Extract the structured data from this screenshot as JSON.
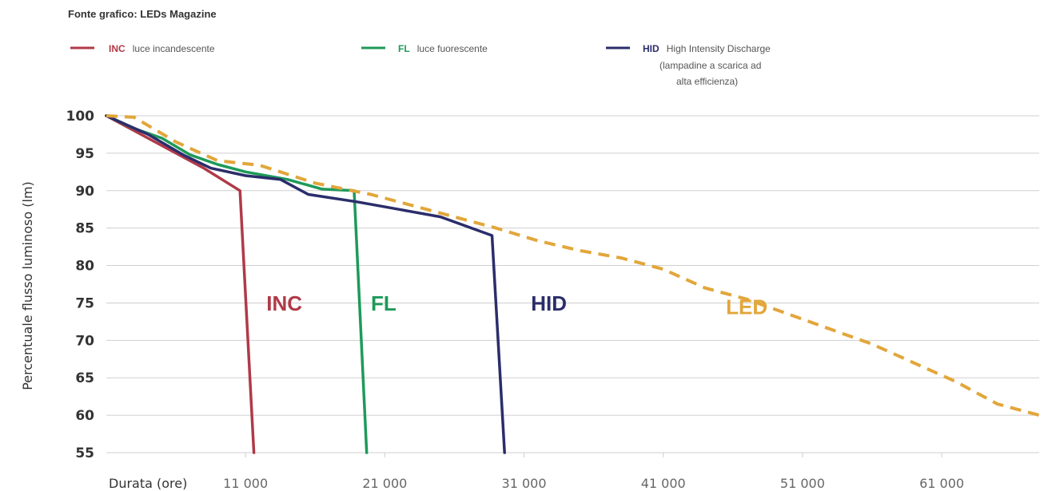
{
  "source_note": "Fonte grafico: LEDs Magazine",
  "legend": [
    {
      "abbr": "INC",
      "text": "luce incandescente",
      "color": "#b03a48"
    },
    {
      "abbr": "FL",
      "text": "luce fuorescente",
      "color": "#1e9a5a"
    },
    {
      "abbr": "HID",
      "text": "High Intensity Discharge",
      "text2": "(lampadine a scarica ad",
      "text3": "alta efficienza)",
      "color": "#2b2d6b"
    }
  ],
  "chart_data": {
    "type": "line",
    "title": "",
    "xlabel": "Durata (ore)",
    "ylabel": "Percentuale flusso luminoso (lm)",
    "xlim": [
      1000,
      68000
    ],
    "ylim": [
      55,
      100
    ],
    "x_ticks": [
      11000,
      21000,
      31000,
      41000,
      51000,
      61000
    ],
    "x_tick_labels": [
      "11 000",
      "21 000",
      "31 000",
      "41 000",
      "51 000",
      "61 000"
    ],
    "y_ticks": [
      100,
      95,
      90,
      85,
      80,
      75,
      70,
      65,
      60,
      55
    ],
    "y_tick_labels": [
      "100",
      "95",
      "90",
      "85",
      "80",
      "75",
      "70",
      "65",
      "60",
      "55"
    ],
    "grid": true,
    "series": [
      {
        "name": "INC",
        "color": "#b03a48",
        "dashed": false,
        "x": [
          1000,
          5000,
          8000,
          10600,
          11600
        ],
        "y": [
          100,
          96,
          93,
          90,
          55
        ]
      },
      {
        "name": "FL",
        "color": "#1e9a5a",
        "dashed": false,
        "x": [
          1000,
          3000,
          5000,
          7000,
          9000,
          11000,
          14000,
          16500,
          18800,
          19700
        ],
        "y": [
          100,
          98.3,
          97,
          94.8,
          93.5,
          92.5,
          91.5,
          90.2,
          90,
          55
        ]
      },
      {
        "name": "HID",
        "color": "#2b2d6b",
        "dashed": false,
        "x": [
          1000,
          4000,
          6500,
          8500,
          11000,
          13500,
          15500,
          19000,
          22000,
          25000,
          28700,
          29600
        ],
        "y": [
          100,
          97.5,
          94.8,
          93,
          92,
          91.5,
          89.5,
          88.5,
          87.5,
          86.5,
          84,
          55
        ]
      },
      {
        "name": "LED",
        "color": "#e2a63a",
        "dashed": true,
        "x": [
          1000,
          3000,
          6000,
          9000,
          12000,
          16000,
          20000,
          25000,
          29000,
          32000,
          35000,
          38000,
          41000,
          44000,
          47000,
          50000,
          53000,
          56000,
          59000,
          62000,
          65000,
          68000
        ],
        "y": [
          100,
          99.8,
          96.5,
          94,
          93.4,
          91,
          89.5,
          87,
          85,
          83.3,
          82,
          81,
          79.5,
          77,
          75.5,
          73.5,
          71.5,
          69.5,
          67,
          64.5,
          61.5,
          60
        ]
      }
    ],
    "series_labels": [
      {
        "text": "INC",
        "color": "#b03a48",
        "x": 12500,
        "y": 74
      },
      {
        "text": "FL",
        "color": "#1e9a5a",
        "x": 20000,
        "y": 74
      },
      {
        "text": "HID",
        "color": "#2b2d6b",
        "x": 31500,
        "y": 74
      },
      {
        "text": "LED",
        "color": "#e2a63a",
        "x": 45500,
        "y": 73.5
      }
    ]
  }
}
